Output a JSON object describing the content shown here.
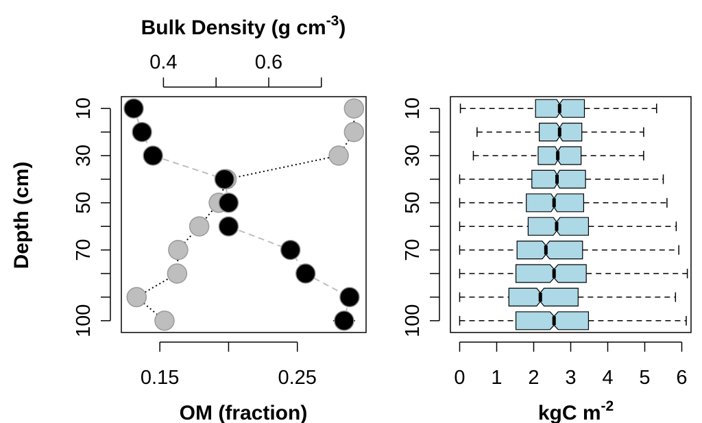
{
  "colors": {
    "om_points": "#000000",
    "bd_points": "#bebebe",
    "om_line": "#bebebe",
    "bd_line": "#000000",
    "box_fill": "#add8e6"
  },
  "chart_data": [
    {
      "type": "scatter",
      "title": "",
      "ylabel": "Depth (cm)",
      "y_ticks": [
        "10",
        "30",
        "50",
        "70",
        "100"
      ],
      "y_range": [
        5,
        105
      ],
      "y_reversed": true,
      "bottom_axis": {
        "label": "OM (fraction)",
        "ticks": [
          "0.15",
          "0.25"
        ],
        "tick_values": [
          0.15,
          0.2,
          0.25
        ],
        "range": [
          0.122,
          0.3
        ]
      },
      "top_axis": {
        "label_main": "Bulk Density (g cm",
        "label_sup": "-3",
        "label_close": ")",
        "ticks": [
          "0.4",
          "0.6"
        ],
        "tick_values": [
          0.4,
          0.5,
          0.6,
          0.7
        ],
        "range": [
          0.32,
          0.785
        ]
      },
      "series": [
        {
          "key": "om",
          "axis": "bottom",
          "line_style": "dashed",
          "depth": [
            10,
            20,
            30,
            40,
            50,
            60,
            70,
            80,
            90,
            100
          ],
          "values": [
            0.131,
            0.137,
            0.145,
            0.197,
            0.2,
            0.2,
            0.245,
            0.256,
            0.288,
            0.284
          ],
          "err_low": [
            0.131,
            0.137,
            0.145,
            0.197,
            0.2,
            0.2,
            0.245,
            0.256,
            0.283,
            0.276
          ],
          "err_high": [
            0.131,
            0.137,
            0.145,
            0.197,
            0.2,
            0.2,
            0.245,
            0.256,
            0.293,
            0.292
          ]
        },
        {
          "key": "bd",
          "axis": "top",
          "line_style": "dotted",
          "depth": [
            10,
            20,
            30,
            40,
            50,
            60,
            70,
            80,
            90,
            100
          ],
          "values": [
            0.762,
            0.762,
            0.733,
            0.52,
            0.505,
            0.468,
            0.428,
            0.426,
            0.349,
            0.402
          ],
          "err_low": [
            0.762,
            0.762,
            0.733,
            0.52,
            0.505,
            0.468,
            0.41,
            0.41,
            0.332,
            0.384
          ],
          "err_high": [
            0.762,
            0.762,
            0.733,
            0.52,
            0.505,
            0.468,
            0.446,
            0.442,
            0.366,
            0.42
          ]
        }
      ]
    },
    {
      "type": "box",
      "title": "",
      "horizontal": true,
      "notched": true,
      "y_ticks": [
        "10",
        "30",
        "50",
        "70",
        "100"
      ],
      "y_range": [
        5,
        105
      ],
      "y_reversed": true,
      "xlabel_main": "kgC m",
      "xlabel_sup": "-2",
      "x_ticks": [
        "0",
        "1",
        "2",
        "3",
        "4",
        "5",
        "6"
      ],
      "x_range": [
        -0.25,
        6.25
      ],
      "boxes": [
        {
          "depth": 10,
          "min": 0.02,
          "q1": 2.05,
          "notch_low": 2.62,
          "median": 2.7,
          "notch_high": 2.78,
          "q3": 3.37,
          "max": 5.32
        },
        {
          "depth": 20,
          "min": 0.47,
          "q1": 2.15,
          "notch_low": 2.62,
          "median": 2.7,
          "notch_high": 2.78,
          "q3": 3.3,
          "max": 4.97
        },
        {
          "depth": 30,
          "min": 0.37,
          "q1": 2.12,
          "notch_low": 2.58,
          "median": 2.65,
          "notch_high": 2.73,
          "q3": 3.28,
          "max": 4.97
        },
        {
          "depth": 40,
          "min": 0.0,
          "q1": 1.95,
          "notch_low": 2.56,
          "median": 2.63,
          "notch_high": 2.7,
          "q3": 3.4,
          "max": 5.5
        },
        {
          "depth": 50,
          "min": 0.0,
          "q1": 1.8,
          "notch_low": 2.47,
          "median": 2.55,
          "notch_high": 2.63,
          "q3": 3.35,
          "max": 5.6
        },
        {
          "depth": 60,
          "min": 0.0,
          "q1": 1.85,
          "notch_low": 2.53,
          "median": 2.62,
          "notch_high": 2.71,
          "q3": 3.48,
          "max": 5.85
        },
        {
          "depth": 70,
          "min": 0.0,
          "q1": 1.55,
          "notch_low": 2.23,
          "median": 2.33,
          "notch_high": 2.43,
          "q3": 3.32,
          "max": 5.92
        },
        {
          "depth": 80,
          "min": 0.0,
          "q1": 1.52,
          "notch_low": 2.44,
          "median": 2.55,
          "notch_high": 2.66,
          "q3": 3.42,
          "max": 6.15
        },
        {
          "depth": 90,
          "min": 0.0,
          "q1": 1.33,
          "notch_low": 2.08,
          "median": 2.18,
          "notch_high": 2.28,
          "q3": 3.2,
          "max": 5.83
        },
        {
          "depth": 100,
          "min": 0.0,
          "q1": 1.52,
          "notch_low": 2.44,
          "median": 2.55,
          "notch_high": 2.66,
          "q3": 3.48,
          "max": 6.12
        }
      ]
    }
  ]
}
